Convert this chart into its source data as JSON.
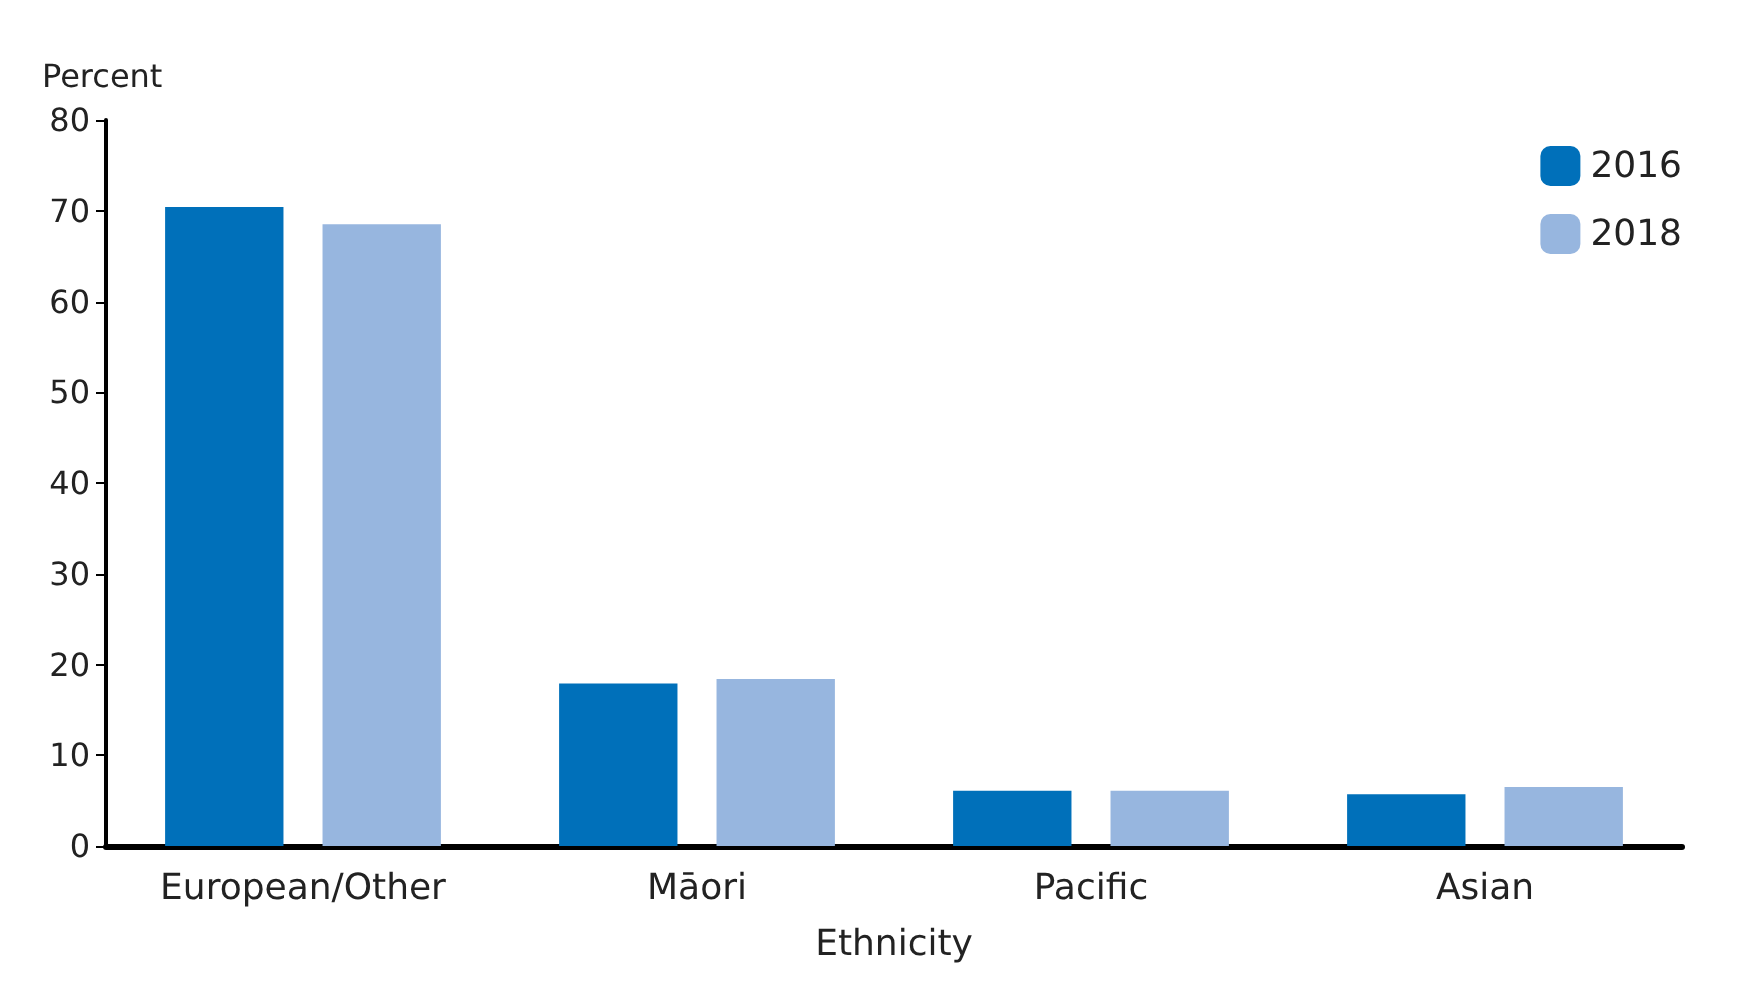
{
  "chart_data": {
    "type": "bar",
    "xlabel": "Ethnicity",
    "ylabel": "Percent",
    "categories": [
      "European/Other",
      "Māori",
      "Pacific",
      "Asian"
    ],
    "series": [
      {
        "name": "2016",
        "color": "#0070ba",
        "values": [
          70.4,
          17.9,
          6.1,
          5.7
        ]
      },
      {
        "name": "2018",
        "color": "#97b6df",
        "values": [
          68.5,
          18.4,
          6.1,
          6.5
        ]
      }
    ],
    "ylim": [
      0,
      80
    ],
    "yticks": [
      0,
      10,
      20,
      30,
      40,
      50,
      60,
      70,
      80
    ],
    "grid": false,
    "legend": "top right"
  }
}
